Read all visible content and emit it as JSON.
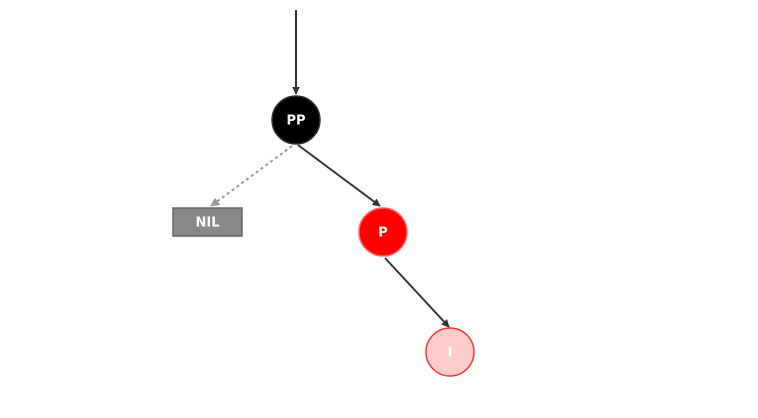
{
  "diagram": {
    "type": "red-black-tree-insertion",
    "nodes": {
      "pp": {
        "label": "PP",
        "color": "black",
        "fill": "#000000",
        "stroke": "#333333"
      },
      "p": {
        "label": "P",
        "color": "red",
        "fill": "#ff0000",
        "stroke": "#ff6666"
      },
      "i": {
        "label": "I",
        "color": "red-inserted",
        "fill": "#ffcccc",
        "stroke": "#ff3333"
      },
      "nil": {
        "label": "NIL",
        "fill": "#888888",
        "stroke": "#666666"
      }
    },
    "edges": [
      {
        "from": "parent",
        "to": "pp",
        "style": "solid",
        "color": "#333333"
      },
      {
        "from": "pp",
        "to": "nil",
        "style": "dotted",
        "color": "#999999"
      },
      {
        "from": "pp",
        "to": "p",
        "style": "solid",
        "color": "#333333"
      },
      {
        "from": "p",
        "to": "i",
        "style": "solid",
        "color": "#333333"
      }
    ]
  }
}
